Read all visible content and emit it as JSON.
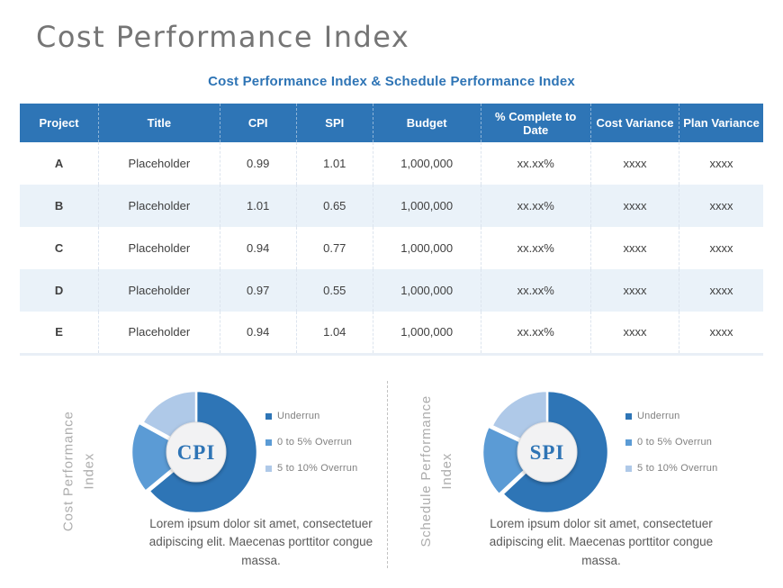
{
  "slide": {
    "title": "Cost Performance Index",
    "subtitle": "Cost Performance Index & Schedule Performance Index"
  },
  "table": {
    "columns": [
      "Project",
      "Title",
      "CPI",
      "SPI",
      "Budget",
      "% Complete to Date",
      "Cost Variance",
      "Plan Variance"
    ],
    "rows": [
      [
        "A",
        "Placeholder",
        "0.99",
        "1.01",
        "1,000,000",
        "xx.xx%",
        "xxxx",
        "xxxx"
      ],
      [
        "B",
        "Placeholder",
        "1.01",
        "0.65",
        "1,000,000",
        "xx.xx%",
        "xxxx",
        "xxxx"
      ],
      [
        "C",
        "Placeholder",
        "0.94",
        "0.77",
        "1,000,000",
        "xx.xx%",
        "xxxx",
        "xxxx"
      ],
      [
        "D",
        "Placeholder",
        "0.97",
        "0.55",
        "1,000,000",
        "xx.xx%",
        "xxxx",
        "xxxx"
      ],
      [
        "E",
        "Placeholder",
        "0.94",
        "1.04",
        "1,000,000",
        "xx.xx%",
        "xxxx",
        "xxxx"
      ]
    ]
  },
  "sections": [
    {
      "side_label_line1": "Cost Performance",
      "side_label_line2": "Index",
      "caption": "Lorem ipsum dolor sit amet, consectetuer adipiscing elit. Maecenas porttitor congue massa."
    },
    {
      "side_label_line1": "Schedule Performance",
      "side_label_line2": "Index",
      "caption": "Lorem ipsum dolor sit amet, consectetuer adipiscing elit. Maecenas porttitor congue massa."
    }
  ],
  "chart_data": [
    {
      "type": "pie",
      "subtype": "donut",
      "center_label": "CPI",
      "categories": [
        "Underrun",
        "0 to 5% Overrun",
        "5 to 10% Overrun"
      ],
      "values": [
        64,
        19,
        17
      ],
      "note": "slice percentages estimated from arc angles; no numeric data labels are shown in the chart",
      "colors": [
        "#2E75B6",
        "#5B9BD5",
        "#AFC9E8"
      ],
      "legend_position": "right"
    },
    {
      "type": "pie",
      "subtype": "donut",
      "center_label": "SPI",
      "categories": [
        "Underrun",
        "0 to 5% Overrun",
        "5 to 10% Overrun"
      ],
      "values": [
        63,
        19,
        18
      ],
      "note": "slice percentages estimated from arc angles; no numeric data labels are shown in the chart",
      "colors": [
        "#2E75B6",
        "#5B9BD5",
        "#AFC9E8"
      ],
      "legend_position": "right"
    }
  ],
  "colors": {
    "accent_blue": "#2E75B6",
    "row_alt": "#EAF2F9",
    "slices": [
      "#2E75B6",
      "#5B9BD5",
      "#AFC9E8"
    ],
    "donut_hole": "#F2F2F3",
    "donut_hole_ring": "#DEDEE0",
    "center_label_blue": "#2E74B5",
    "legend_text": "#808080",
    "caption_text": "#595959",
    "side_label_gray": "#ADADAD",
    "title_gray": "#757575",
    "subtitle_blue": "#2E74B5"
  }
}
